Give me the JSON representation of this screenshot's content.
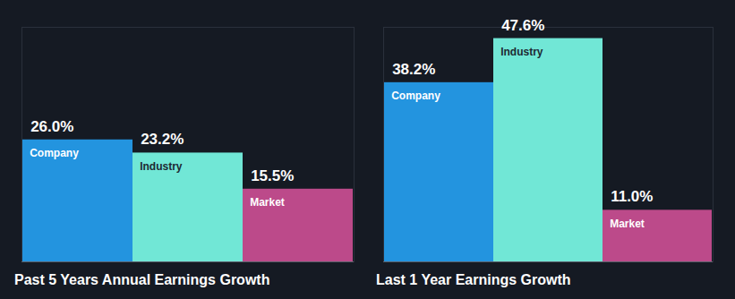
{
  "chart_data": [
    {
      "type": "bar",
      "title": "Past 5 Years Annual Earnings Growth",
      "categories": [
        "Company",
        "Industry",
        "Market"
      ],
      "values": [
        26.0,
        23.2,
        15.5
      ],
      "value_labels": [
        "26.0%",
        "23.2%",
        "15.5%"
      ],
      "colors": [
        "#2394df",
        "#71e7d6",
        "#bc4a8a"
      ],
      "ylim": [
        0,
        50
      ],
      "yticks": [
        0
      ],
      "data_labels": true,
      "tick_labels": false,
      "grid": false
    },
    {
      "type": "bar",
      "title": "Last 1 Year Earnings Growth",
      "categories": [
        "Company",
        "Industry",
        "Market"
      ],
      "values": [
        38.2,
        47.6,
        11.0
      ],
      "value_labels": [
        "38.2%",
        "47.6%",
        "11.0%"
      ],
      "colors": [
        "#2394df",
        "#71e7d6",
        "#bc4a8a"
      ],
      "ylim": [
        0,
        50
      ],
      "yticks": [
        0
      ],
      "data_labels": true,
      "tick_labels": false,
      "grid": false
    }
  ]
}
